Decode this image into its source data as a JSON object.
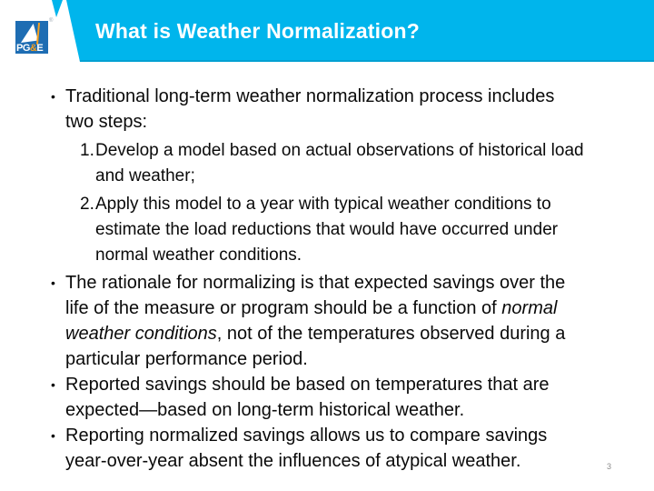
{
  "colors": {
    "band": "#00b5ec",
    "band-edge": "#00a0d2",
    "logo-blue": "#1e6db3",
    "logo-amber": "#f6a01e",
    "text": "#0a0a0a",
    "title": "#ffffff",
    "page-number": "#8c8c8c"
  },
  "header": {
    "title": "What is Weather Normalization?",
    "logo": {
      "pg": "PG",
      "amp": "&",
      "e": "E",
      "registered": "®"
    }
  },
  "body": {
    "bullet_glyph": "•",
    "bullet1": {
      "lines": [
        "Traditional long-term weather normalization process includes",
        "two steps:"
      ]
    },
    "numbered": [
      {
        "num": "1.",
        "lines": [
          "Develop a model based on actual observations of historical load",
          "and weather;"
        ]
      },
      {
        "num": "2.",
        "lines": [
          "Apply this model to a year with typical weather conditions to",
          "estimate the load reductions that would have occurred under",
          "normal weather conditions."
        ]
      }
    ],
    "bullet2": {
      "line1": "The rationale for normalizing is that expected savings over the",
      "line2_regular": "life of the measure or program should be a function of ",
      "line2_italic": "normal",
      "line3_italic": "weather conditions",
      "line3_regular": ", not of the temperatures observed during a",
      "line4": "particular performance period."
    },
    "bullet3": {
      "lines": [
        "Reported savings should be based on temperatures that are",
        "expected—based on long-term historical weather."
      ]
    },
    "bullet4": {
      "lines": [
        "Reporting normalized savings allows us to compare savings",
        "year-over-year absent the influences of atypical weather."
      ]
    }
  },
  "footer": {
    "page_number": "3"
  }
}
